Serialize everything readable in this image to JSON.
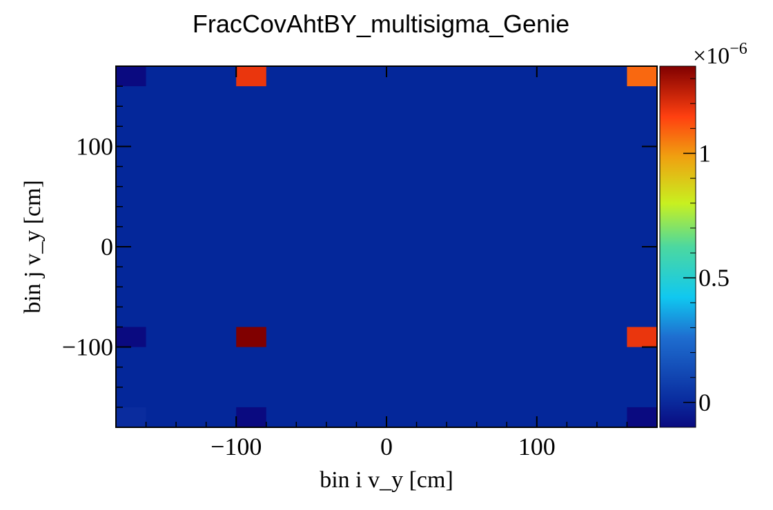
{
  "chart_data": {
    "type": "heatmap",
    "title": "FracCovAhtBY_multisigma_Genie",
    "xlabel": "bin i v_y [cm]",
    "ylabel": "bin j v_y [cm]",
    "xlim": [
      -180,
      180
    ],
    "ylim": [
      -180,
      180
    ],
    "x_ticks": [
      -100,
      0,
      100
    ],
    "y_ticks": [
      -100,
      0,
      100
    ],
    "x_tick_labels": [
      "−100",
      "0",
      "100"
    ],
    "y_tick_labels": [
      "100",
      "0",
      "−100"
    ],
    "colorbar": {
      "range": [
        -1e-07,
        1.35e-06
      ],
      "ticks": [
        0,
        5e-07,
        1e-06
      ],
      "tick_labels": [
        "0",
        "0.5",
        "1"
      ],
      "exponent_label": "×10",
      "exponent": "−6",
      "palette": "rainbow"
    },
    "background_value": 0,
    "bin_width": 20,
    "cells": [
      {
        "x": -170,
        "y": 170,
        "value": -1e-07
      },
      {
        "x": -90,
        "y": 170,
        "value": 1.18e-06
      },
      {
        "x": 170,
        "y": 170,
        "value": 1.08e-06
      },
      {
        "x": -170,
        "y": -90,
        "value": -1e-07
      },
      {
        "x": -90,
        "y": -90,
        "value": 1.35e-06
      },
      {
        "x": 170,
        "y": -90,
        "value": 1.18e-06
      },
      {
        "x": -170,
        "y": -170,
        "value": 1e-08
      },
      {
        "x": -90,
        "y": -170,
        "value": -1e-07
      },
      {
        "x": 170,
        "y": -170,
        "value": -1e-07
      }
    ]
  }
}
